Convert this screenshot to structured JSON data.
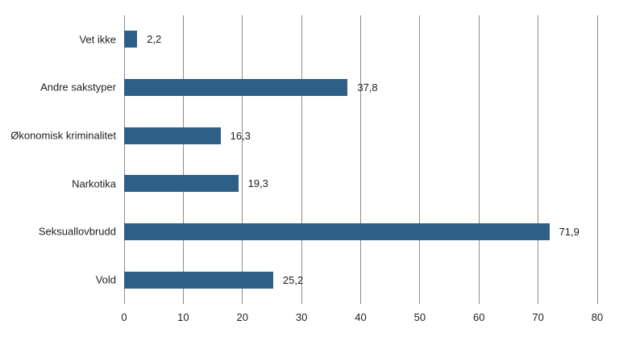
{
  "chart_data": {
    "type": "bar",
    "orientation": "horizontal",
    "title": "",
    "xlabel": "",
    "ylabel": "",
    "categories": [
      "Vet ikke",
      "Andre sakstyper",
      "Økonomisk kriminalitet",
      "Narkotika",
      "Seksuallovbrudd",
      "Vold"
    ],
    "values": [
      2.2,
      37.8,
      16.3,
      19.3,
      71.9,
      25.2
    ],
    "value_labels": [
      "2,2",
      "37,8",
      "16,3",
      "19,3",
      "71,9",
      "25,2"
    ],
    "xlim": [
      0,
      80
    ],
    "xticks": [
      0,
      10,
      20,
      30,
      40,
      50,
      60,
      70,
      80
    ],
    "grid": "vertical",
    "legend": "none",
    "colors": {
      "bar": "#2e5f87",
      "gridline": "#8c8c8c",
      "text": "#1f1f1f",
      "background": "#ffffff"
    }
  }
}
